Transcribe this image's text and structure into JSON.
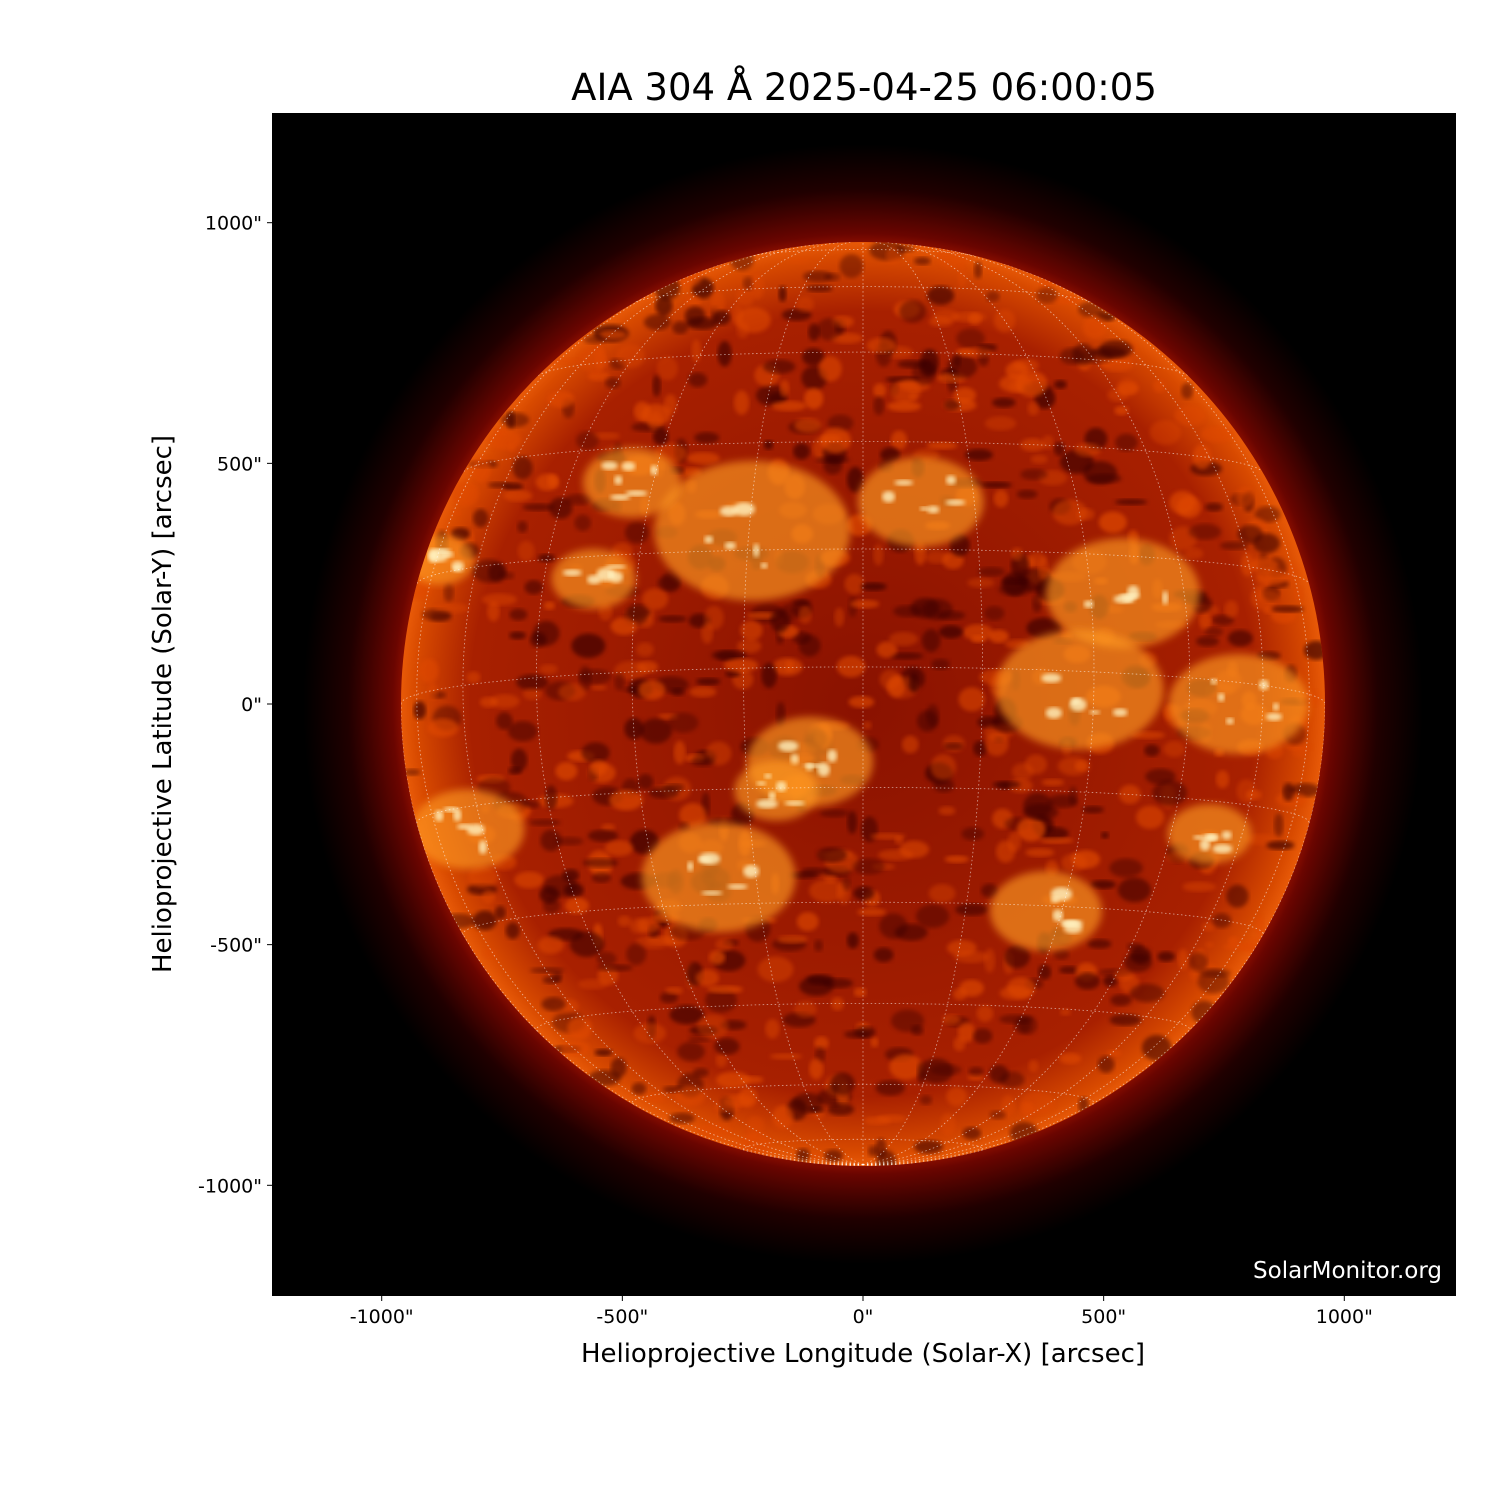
{
  "chart_data": {
    "type": "image",
    "title": "AIA 304 Å 2025-04-25 06:00:05",
    "xlabel": "Helioprojective Longitude (Solar-X) [arcsec]",
    "ylabel": "Helioprojective Latitude (Solar-Y) [arcsec]",
    "xlim": [
      -1230,
      1230
    ],
    "ylim": [
      -1230,
      1230
    ],
    "xticks": [
      -1000,
      -500,
      0,
      500,
      1000
    ],
    "yticks": [
      -1000,
      -500,
      0,
      500,
      1000
    ],
    "xtick_labels": [
      "-1000\"",
      "-500\"",
      "0\"",
      "500\"",
      "1000\""
    ],
    "ytick_labels": [
      "-1000\"",
      "-500\"",
      "0\"",
      "500\"",
      "1000\""
    ],
    "solar_radius_arcsec": 960,
    "grid": {
      "type": "heliographic",
      "spacing_deg": 15,
      "style": "dotted",
      "color": "#ffffff"
    },
    "colormap": "sdoaia304",
    "colors": {
      "background": "#000000",
      "disk_dark": "#5a0000",
      "disk_mid": "#c83000",
      "disk_bright": "#ff9a20",
      "highlight": "#fff2c0"
    },
    "watermark": "SolarMonitor.org"
  }
}
